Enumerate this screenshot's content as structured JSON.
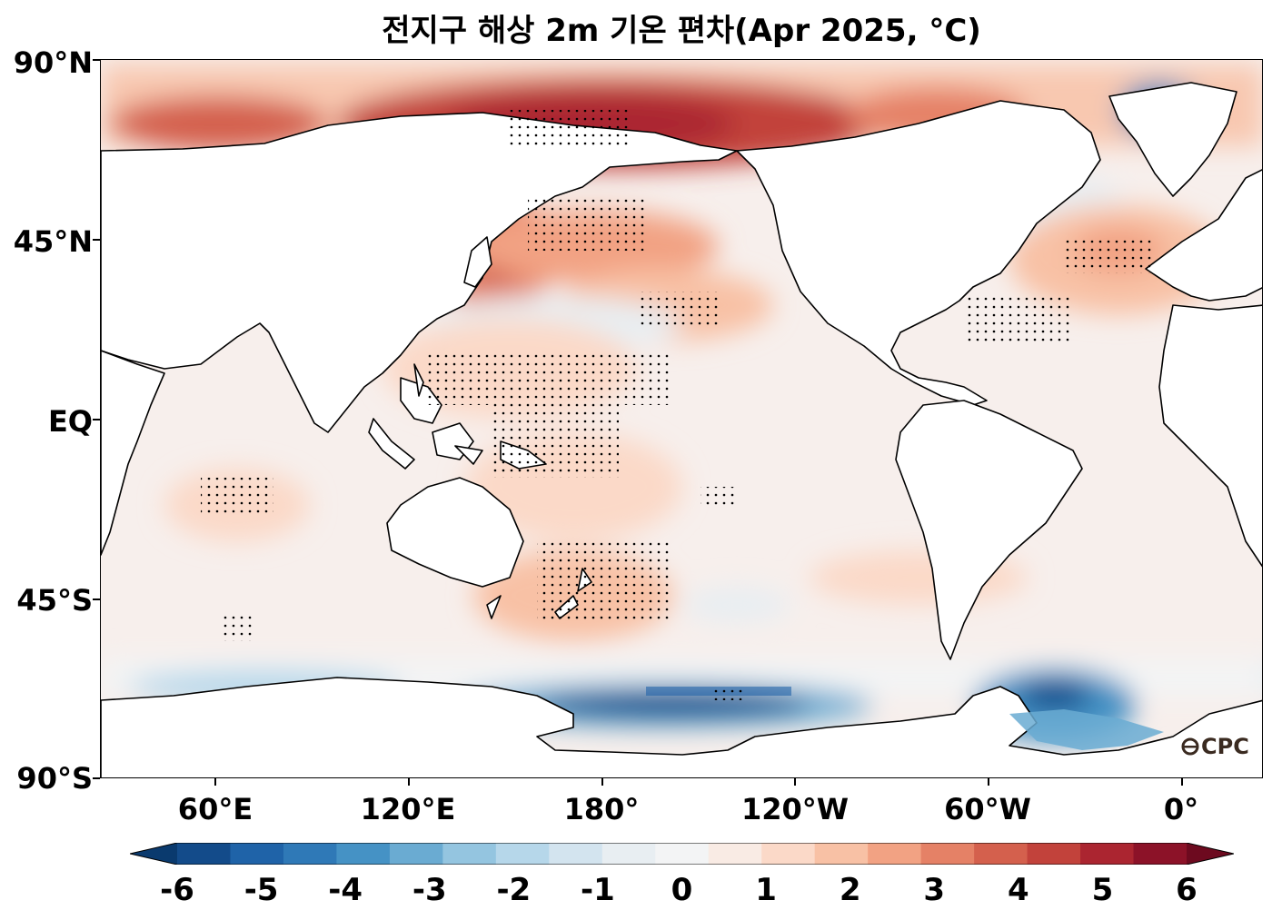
{
  "title": "전지구 해상 2m 기온 편차(Apr 2025, °C)",
  "logo_text": "CPC",
  "lat_labels": [
    "90°N",
    "45°N",
    "EQ",
    "45°S",
    "90°S"
  ],
  "lon_labels": [
    "60°E",
    "120°E",
    "180°",
    "120°W",
    "60°W",
    "0°"
  ],
  "colorbar": {
    "tick_labels": [
      "-6",
      "-5",
      "-4",
      "-3",
      "-2",
      "-1",
      "0",
      "1",
      "2",
      "3",
      "4",
      "5",
      "6"
    ],
    "colors": [
      "#0a3a6e",
      "#134b8a",
      "#1f63a8",
      "#2f79b7",
      "#4592c5",
      "#6aabd2",
      "#94c5e0",
      "#b6d7ea",
      "#d3e4ef",
      "#e8eef2",
      "#f3f4f5",
      "#f9ebe4",
      "#fbd9c8",
      "#f8c1a5",
      "#f2a283",
      "#e58166",
      "#d4604d",
      "#c2423b",
      "#ab2530",
      "#8c1228",
      "#6d0a1f"
    ],
    "extend": "both"
  },
  "map": {
    "ocean_base_color": "#f7efec",
    "land_color": "#ffffff",
    "coastline_color": "#000000",
    "projection": "PlateCarree",
    "central_longitude": 150,
    "lat_range": [
      -90,
      90
    ],
    "lon_range": [
      30,
      390
    ],
    "hatching": "stippling marks significant anomalies"
  }
}
